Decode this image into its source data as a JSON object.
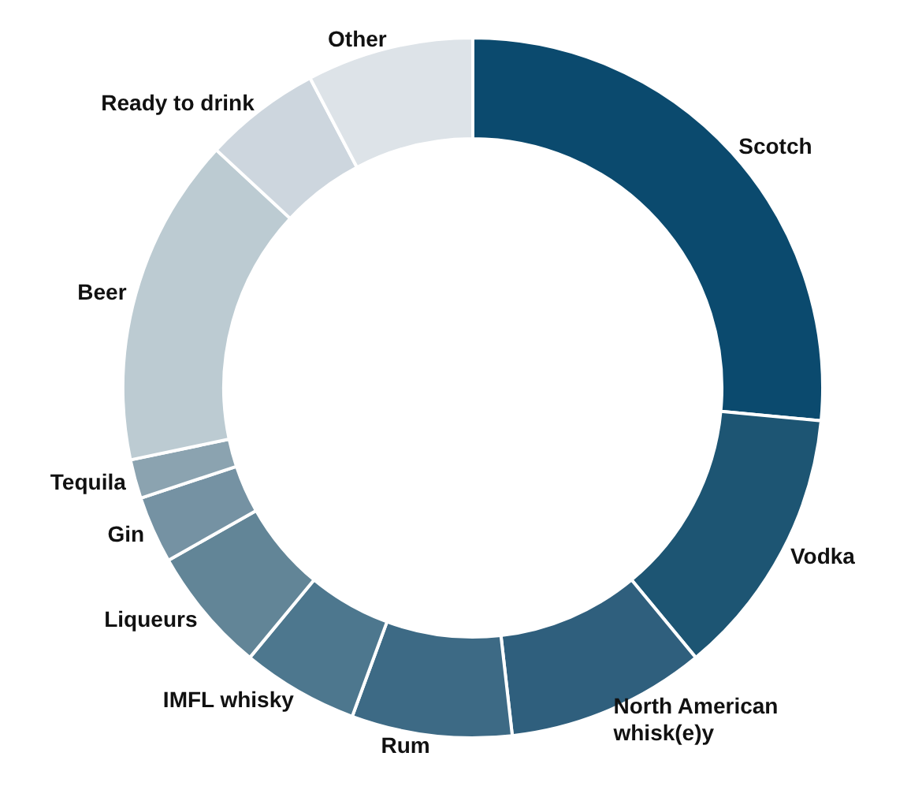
{
  "chart_data": {
    "type": "donut",
    "categories": [
      "Scotch",
      "Vodka",
      "North American\nwhisk(e)y",
      "Rum",
      "IMFL whisky",
      "Liqueurs",
      "Gin",
      "Tequila",
      "Beer",
      "Ready to drink",
      "Other"
    ],
    "values": [
      26.5,
      12.5,
      9.2,
      7.4,
      5.4,
      5.8,
      3.1,
      1.8,
      15.2,
      5.4,
      7.7
    ],
    "colors": [
      "#0b4a6e",
      "#1d5573",
      "#2f5f7d",
      "#3d6a85",
      "#4d778e",
      "#628597",
      "#7592a3",
      "#8ba3b0",
      "#bccbd2",
      "#cdd6de",
      "#dde3e8"
    ],
    "legend": false
  }
}
